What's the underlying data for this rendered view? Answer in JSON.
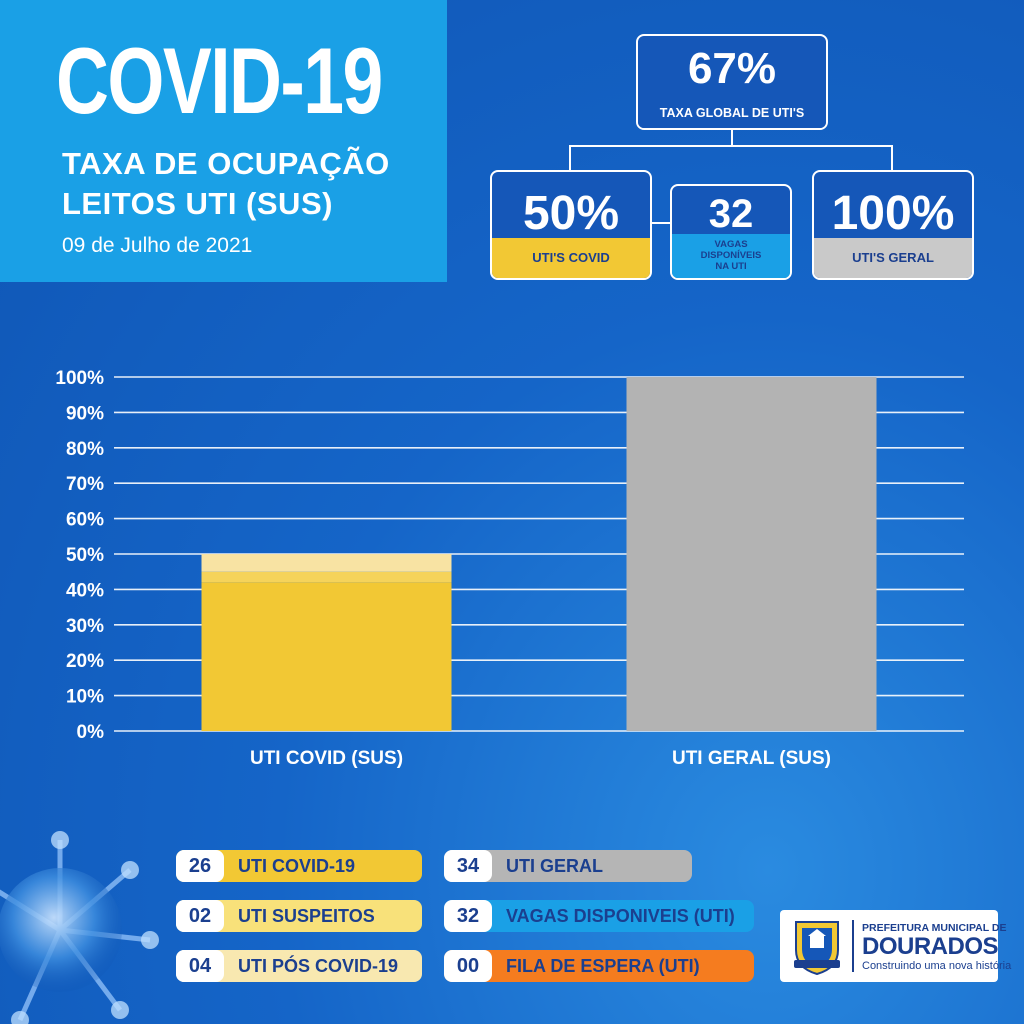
{
  "header": {
    "title": "COVID-19",
    "subtitle_line1": "TAXA DE OCUPAÇÃO",
    "subtitle_line2": "LEITOS UTI (SUS)",
    "date": "09 de Julho de 2021"
  },
  "kpis": {
    "global": {
      "value": "67%",
      "label": "TAXA GLOBAL DE UTI'S"
    },
    "covid": {
      "value": "50%",
      "label": "UTI'S COVID",
      "color": "#f2c834"
    },
    "vagas": {
      "value": "32",
      "label_line1": "VAGAS",
      "label_line2": "DISPONÍVEIS",
      "label_line3": "NA UTI",
      "color": "#1aa0e6"
    },
    "geral": {
      "value": "100%",
      "label": "UTI'S GERAL",
      "color": "#c9c9c9"
    }
  },
  "chart_data": {
    "type": "bar",
    "categories": [
      "UTI COVID (SUS)",
      "UTI GERAL (SUS)"
    ],
    "values": [
      50,
      100
    ],
    "colors": [
      "#f2c834",
      "#b3b3b3"
    ],
    "covid_segments": [
      {
        "value": 42,
        "color": "#f2c834"
      },
      {
        "value": 3,
        "color": "#f5d35a"
      },
      {
        "value": 5,
        "color": "#f8e3a3"
      }
    ],
    "yticks": [
      "0%",
      "10%",
      "20%",
      "30%",
      "40%",
      "50%",
      "60%",
      "70%",
      "80%",
      "90%",
      "100%"
    ],
    "ylim": [
      0,
      100
    ],
    "grid": true
  },
  "legend": [
    {
      "num": "26",
      "label": "UTI COVID-19",
      "color": "#f2c834"
    },
    {
      "num": "02",
      "label": "UTI SUSPEITOS",
      "color": "#f8e17a"
    },
    {
      "num": "04",
      "label": "UTI PÓS COVID-19",
      "color": "#f8e8b0"
    },
    {
      "num": "34",
      "label": "UTI GERAL",
      "color": "#b5b5b5"
    },
    {
      "num": "32",
      "label": "VAGAS DISPONIVEIS (UTI)",
      "color": "#1aa0e6"
    },
    {
      "num": "00",
      "label": "FILA DE ESPERA (UTI)",
      "color": "#f57c1f"
    }
  ],
  "logo": {
    "line1": "PREFEITURA MUNICIPAL DE",
    "line2": "DOURADOS",
    "line3": "Construindo uma nova história"
  }
}
